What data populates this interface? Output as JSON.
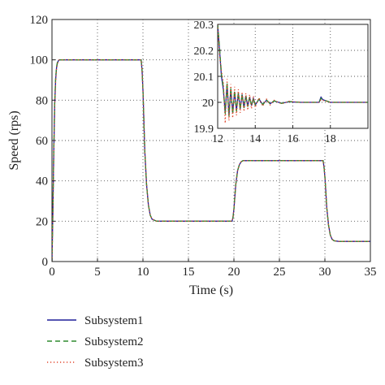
{
  "chart_data": [
    {
      "type": "line",
      "xlabel": "Time (s)",
      "ylabel": "Speed (rps)",
      "xlim": [
        0,
        35
      ],
      "ylim": [
        0,
        120
      ],
      "xticks": [
        "0",
        "5",
        "10",
        "15",
        "20",
        "25",
        "30",
        "35"
      ],
      "yticks": [
        "0",
        "20",
        "40",
        "60",
        "80",
        "100",
        "120"
      ],
      "grid": true,
      "legend_position": "bottom-left, below axes",
      "series": [
        {
          "name": "Subsystem1",
          "color": "#1f1f99",
          "style": "solid",
          "x": [
            0,
            0.1,
            0.2,
            0.3,
            0.4,
            0.5,
            0.6,
            0.7,
            0.8,
            1.0,
            9.8,
            9.9,
            10.0,
            10.1,
            10.2,
            10.4,
            10.6,
            10.8,
            11.0,
            11.5,
            19.8,
            19.9,
            20.0,
            20.1,
            20.2,
            20.4,
            20.6,
            20.8,
            21.0,
            21.5,
            29.8,
            29.9,
            30.0,
            30.1,
            30.2,
            30.4,
            30.6,
            30.8,
            31.0,
            31.5,
            35
          ],
          "y": [
            0,
            25,
            55,
            78,
            90,
            96,
            98.5,
            99.5,
            100,
            100,
            100,
            95,
            85,
            70,
            55,
            38,
            28,
            23,
            21,
            20,
            20,
            22,
            26,
            32,
            38,
            45,
            48,
            49.5,
            50,
            50,
            50,
            47,
            42,
            35,
            27,
            18,
            13,
            11,
            10.3,
            10,
            10
          ]
        },
        {
          "name": "Subsystem2",
          "color": "#2e8b2e",
          "style": "dashed",
          "x": [
            0,
            0.1,
            0.2,
            0.3,
            0.4,
            0.5,
            0.6,
            0.7,
            0.8,
            1.0,
            9.8,
            9.9,
            10.0,
            10.1,
            10.2,
            10.4,
            10.6,
            10.8,
            11.0,
            11.5,
            19.8,
            19.9,
            20.0,
            20.1,
            20.2,
            20.4,
            20.6,
            20.8,
            21.0,
            21.5,
            29.8,
            29.9,
            30.0,
            30.1,
            30.2,
            30.4,
            30.6,
            30.8,
            31.0,
            31.5,
            35
          ],
          "y": [
            0,
            26,
            56,
            79,
            91,
            96.5,
            99,
            99.8,
            100,
            100,
            100,
            95,
            85,
            70,
            55,
            38,
            28,
            23,
            21,
            20,
            20,
            22,
            26,
            32,
            38,
            45,
            48,
            49.5,
            50,
            50,
            50,
            47,
            42,
            35,
            27,
            18,
            13,
            11,
            10.3,
            10,
            10
          ]
        },
        {
          "name": "Subsystem3",
          "color": "#e0442a",
          "style": "dotted",
          "x": [
            0,
            0.1,
            0.2,
            0.3,
            0.4,
            0.5,
            0.6,
            0.7,
            0.8,
            1.0,
            9.8,
            9.9,
            10.0,
            10.1,
            10.2,
            10.4,
            10.6,
            10.8,
            11.0,
            11.5,
            19.8,
            19.9,
            20.0,
            20.1,
            20.2,
            20.4,
            20.6,
            20.8,
            21.0,
            21.5,
            29.8,
            29.9,
            30.0,
            30.1,
            30.2,
            30.4,
            30.6,
            30.8,
            31.0,
            31.5,
            35
          ],
          "y": [
            0,
            24,
            54,
            77,
            89,
            95.5,
            98,
            99.3,
            100,
            100,
            100,
            95,
            85,
            70,
            55,
            38,
            28,
            23,
            21,
            20,
            20,
            22,
            26,
            32,
            38,
            45,
            48,
            49.5,
            50,
            50,
            50,
            47,
            42,
            35,
            27,
            18,
            13,
            11,
            10.3,
            10,
            10
          ]
        }
      ]
    },
    {
      "type": "line",
      "role": "inset",
      "xlim": [
        12,
        20
      ],
      "ylim": [
        19.9,
        20.3
      ],
      "xticks": [
        "12",
        "14",
        "16",
        "18"
      ],
      "yticks": [
        "19.9",
        "20",
        "20.1",
        "20.2",
        "20.3"
      ],
      "grid": true,
      "series": [
        {
          "name": "Subsystem1",
          "color": "#1f1f99",
          "style": "solid",
          "x": [
            12.0,
            12.1,
            12.2,
            12.3,
            12.4,
            12.5,
            12.6,
            12.7,
            12.8,
            12.9,
            13.0,
            13.1,
            13.2,
            13.3,
            13.4,
            13.5,
            13.6,
            13.7,
            13.8,
            13.9,
            14.0,
            14.2,
            14.4,
            14.6,
            14.8,
            15.0,
            15.4,
            15.8,
            16.4,
            17.0,
            17.4,
            17.5,
            17.6,
            17.8,
            18.0,
            18.5,
            19.0,
            20.0
          ],
          "y": [
            20.3,
            20.2,
            20.1,
            20.05,
            19.96,
            20.07,
            19.95,
            20.05,
            19.96,
            20.04,
            19.97,
            20.035,
            19.975,
            20.03,
            19.98,
            20.025,
            19.985,
            20.02,
            19.988,
            20.015,
            19.99,
            20.012,
            19.992,
            20.008,
            19.995,
            20.005,
            19.997,
            20.002,
            20.0,
            20.0,
            20.0,
            20.02,
            20.01,
            20.005,
            20.0,
            20.0,
            20.0,
            20.0
          ]
        },
        {
          "name": "Subsystem2",
          "color": "#2e8b2e",
          "style": "dashed",
          "x": [
            12.0,
            12.1,
            12.2,
            12.3,
            12.4,
            12.5,
            12.6,
            12.7,
            12.8,
            12.9,
            13.0,
            13.1,
            13.2,
            13.3,
            13.4,
            13.5,
            13.6,
            13.7,
            13.8,
            13.9,
            14.0,
            14.2,
            14.4,
            14.6,
            14.8,
            15.0,
            15.4,
            15.8,
            16.4,
            17.0,
            17.4,
            17.5,
            17.6,
            17.8,
            18.0,
            18.5,
            19.0,
            20.0
          ],
          "y": [
            20.3,
            20.21,
            20.11,
            20.06,
            19.955,
            20.075,
            19.945,
            20.055,
            19.955,
            20.045,
            19.965,
            20.038,
            19.972,
            20.032,
            19.978,
            20.026,
            19.983,
            20.021,
            19.987,
            20.016,
            19.99,
            20.013,
            19.991,
            20.009,
            19.994,
            20.006,
            19.996,
            20.003,
            20.0,
            20.0,
            20.0,
            20.015,
            20.01,
            20.005,
            20.0,
            20.0,
            20.0,
            20.0
          ]
        },
        {
          "name": "Subsystem3",
          "color": "#e0442a",
          "style": "dotted",
          "x": [
            12.0,
            12.1,
            12.2,
            12.3,
            12.4,
            12.5,
            12.6,
            12.7,
            12.8,
            12.9,
            13.0,
            13.1,
            13.2,
            13.3,
            13.4,
            13.5,
            13.6,
            13.7,
            13.8,
            13.9,
            14.0,
            14.2,
            14.4,
            14.6,
            14.8,
            15.0,
            15.4,
            15.8,
            16.4,
            17.0,
            17.4,
            17.5,
            17.6,
            17.8,
            18.0,
            18.5,
            19.0,
            20.0
          ],
          "y": [
            20.3,
            20.18,
            20.12,
            20.08,
            19.92,
            20.09,
            19.93,
            20.07,
            19.94,
            20.06,
            19.95,
            20.05,
            19.96,
            20.04,
            19.965,
            20.035,
            19.97,
            20.03,
            19.975,
            20.025,
            19.98,
            20.018,
            19.985,
            20.012,
            19.99,
            20.008,
            19.994,
            20.004,
            20.0,
            20.0,
            20.0,
            20.01,
            20.008,
            20.004,
            20.0,
            20.0,
            20.0,
            20.0
          ]
        }
      ]
    }
  ],
  "legend": {
    "items": [
      {
        "label": "Subsystem1",
        "color": "#1f1f99",
        "style": "solid"
      },
      {
        "label": "Subsystem2",
        "color": "#2e8b2e",
        "style": "dashed"
      },
      {
        "label": "Subsystem3",
        "color": "#e0442a",
        "style": "dotted"
      }
    ]
  }
}
